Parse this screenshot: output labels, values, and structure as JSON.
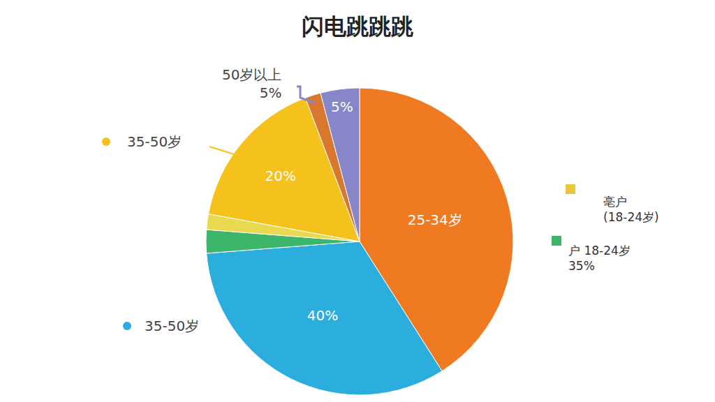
{
  "chart_data": {
    "type": "pie",
    "title": "闪电跳跳跳",
    "categories": [
      "25-34岁",
      "35-50岁",
      null,
      null,
      "35-50岁",
      null,
      "50岁以上"
    ],
    "values": [
      50,
      40,
      3,
      2,
      20,
      2,
      5
    ],
    "value_labels": [
      null,
      "40%",
      null,
      null,
      "20%",
      null,
      "5%"
    ],
    "colors": [
      "#f07a22",
      "#2badde",
      "#3db56a",
      "#e9d94e",
      "#f5c11c",
      "#d9772f",
      "#8686c8"
    ],
    "data_labels": true,
    "annotations": [
      [
        "亳户",
        "(18-24岁)"
      ],
      [
        "户 18-24岁",
        "35%"
      ]
    ]
  }
}
